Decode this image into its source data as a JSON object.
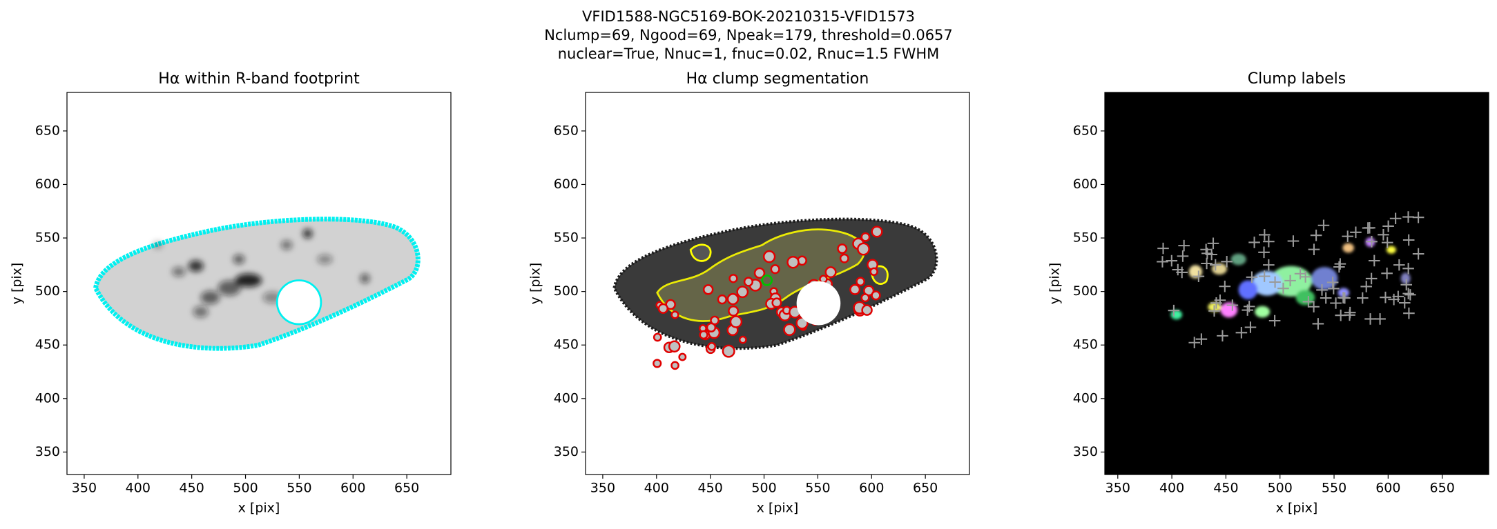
{
  "figure_title": [
    "VFID1588-NGC5169-BOK-20210315-VFID1573",
    "Nclump=69, Ngood=69, Npeak=179, threshold=0.0657",
    "nuclear=True, Nnuc=1, fnuc=0.02, Rnuc=1.5 FWHM"
  ],
  "chart_data": [
    {
      "type": "image",
      "title": "Hα within R-band footprint",
      "x_label": "x [pix]",
      "y_label": "y [pix]",
      "xlim": [
        334,
        691
      ],
      "ylim": [
        329,
        686
      ],
      "xticks": [
        350,
        400,
        450,
        500,
        550,
        600,
        650
      ],
      "yticks": [
        350,
        400,
        450,
        500,
        550,
        600,
        650
      ]
    },
    {
      "type": "image",
      "title": "Hα clump segmentation",
      "x_label": "x [pix]",
      "y_label": "y [pix]",
      "xlim": [
        334,
        691
      ],
      "ylim": [
        329,
        686
      ],
      "xticks": [
        350,
        400,
        450,
        500,
        550,
        600,
        650
      ],
      "yticks": [
        350,
        400,
        450,
        500,
        550,
        600,
        650
      ]
    },
    {
      "type": "image",
      "title": "Clump labels",
      "x_label": "x [pix]",
      "y_label": "y [pix]",
      "xlim": [
        338,
        693
      ],
      "ylim": [
        329,
        686
      ],
      "xticks": [
        350,
        400,
        450,
        500,
        550,
        600,
        650
      ],
      "yticks": [
        350,
        400,
        450,
        500,
        550,
        600,
        650
      ]
    }
  ]
}
